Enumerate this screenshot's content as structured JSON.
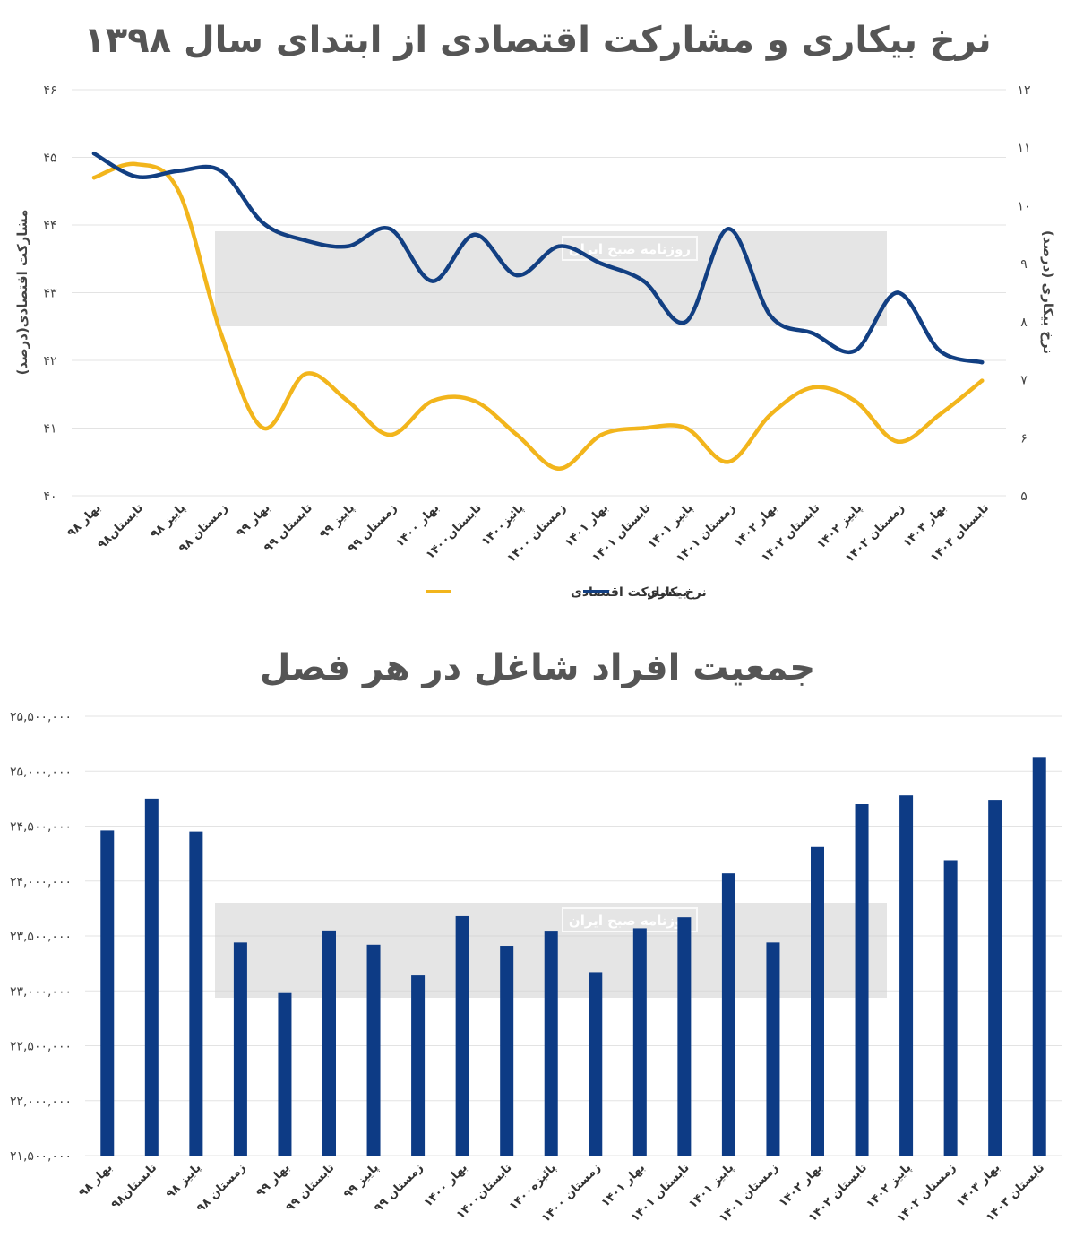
{
  "chart_data": [
    {
      "type": "line",
      "title": "نرخ بیکاری و مشارکت اقتصادی از ابتدای سال ۱۳۹۸",
      "categories": [
        "بهار ۹۸",
        "تابستان۹۸",
        "پاییز ۹۸",
        "زمستان ۹۸",
        "بهار ۹۹",
        "تابستان ۹۹",
        "پاییز ۹۹",
        "زمستان ۹۹",
        "بهار ۱۴۰۰",
        "تابستان۱۴۰۰",
        "پائیز۱۴۰۰",
        "زمستان ۱۴۰۰",
        "بهار ۱۴۰۱",
        "تابستان ۱۴۰۱",
        "پاییز ۱۴۰۱",
        "زمستان ۱۴۰۱",
        "بهار ۱۴۰۲",
        "تابستان ۱۴۰۲",
        "پاییز ۱۴۰۲",
        "زمستان ۱۴۰۲",
        "بهار ۱۴۰۳",
        "تابستان ۱۴۰۳"
      ],
      "y_left": {
        "label": "مشارکت اقتصادی(درصد)",
        "range": [
          40,
          46
        ],
        "ticks": [
          "۴۰",
          "۴۱",
          "۴۲",
          "۴۳",
          "۴۴",
          "۴۵",
          "۴۶"
        ]
      },
      "y_right": {
        "label": "نرخ بیکاری (درصد)",
        "range": [
          5,
          12
        ],
        "ticks": [
          "۵",
          "۶",
          "۷",
          "۸",
          "۹",
          "۱۰",
          "۱۱",
          "۱۲"
        ]
      },
      "series": [
        {
          "name": "نرخ مشارکت اقتصادی",
          "axis": "left",
          "color": "#f2b51c",
          "values": [
            44.7,
            44.9,
            44.5,
            42.4,
            41.0,
            41.8,
            41.4,
            40.9,
            41.4,
            41.4,
            40.9,
            40.4,
            40.9,
            41.0,
            41.0,
            40.5,
            41.2,
            41.6,
            41.4,
            40.8,
            41.2,
            41.7
          ]
        },
        {
          "name": "بیکاری",
          "axis": "right",
          "color": "#123f82",
          "values": [
            10.9,
            10.5,
            10.6,
            10.6,
            9.7,
            9.4,
            9.3,
            9.6,
            8.7,
            9.5,
            8.8,
            9.3,
            9.0,
            8.7,
            8.0,
            9.6,
            8.1,
            7.8,
            7.5,
            8.5,
            7.5,
            7.3
          ]
        }
      ]
    },
    {
      "type": "bar",
      "title": "جمعیت افراد شاغل در هر فصل",
      "categories": [
        "بهار ۹۸",
        "تابستان۹۸",
        "پاییز ۹۸",
        "زمستان ۹۸",
        "بهار ۹۹",
        "تابستان ۹۹",
        "پاییز ۹۹",
        "زمستان ۹۹",
        "بهار ۱۴۰۰",
        "تابستان۱۴۰۰",
        "پائیزه۱۴۰۰",
        "زمستان ۱۴۰۰",
        "بهار ۱۴۰۱",
        "تابستان ۱۴۰۱",
        "پاییز ۱۴۰۱",
        "زمستان ۱۴۰۱",
        "بهار ۱۴۰۲",
        "تابستان ۱۴۰۲",
        "پاییز ۱۴۰۲",
        "زمستان ۱۴۰۲",
        "بهار ۱۴۰۳",
        "تابستان ۱۴۰۳"
      ],
      "ylim": [
        21500000,
        25500000
      ],
      "ytick_labels": [
        "۲۱,۵۰۰,۰۰۰",
        "۲۲,۰۰۰,۰۰۰",
        "۲۲,۵۰۰,۰۰۰",
        "۲۳,۰۰۰,۰۰۰",
        "۲۳,۵۰۰,۰۰۰",
        "۲۴,۰۰۰,۰۰۰",
        "۲۴,۵۰۰,۰۰۰",
        "۲۵,۰۰۰,۰۰۰",
        "۲۵,۵۰۰,۰۰۰"
      ],
      "color": "#0d3b85",
      "values": [
        24460000,
        24750000,
        24450000,
        23440000,
        22980000,
        23550000,
        23420000,
        23140000,
        23680000,
        23410000,
        23540000,
        23170000,
        23570000,
        23670000,
        24070000,
        23440000,
        24310000,
        24700000,
        24780000,
        24190000,
        24740000,
        25130000
      ]
    }
  ],
  "watermark": {
    "text": "روزنامه صبح ایران"
  }
}
